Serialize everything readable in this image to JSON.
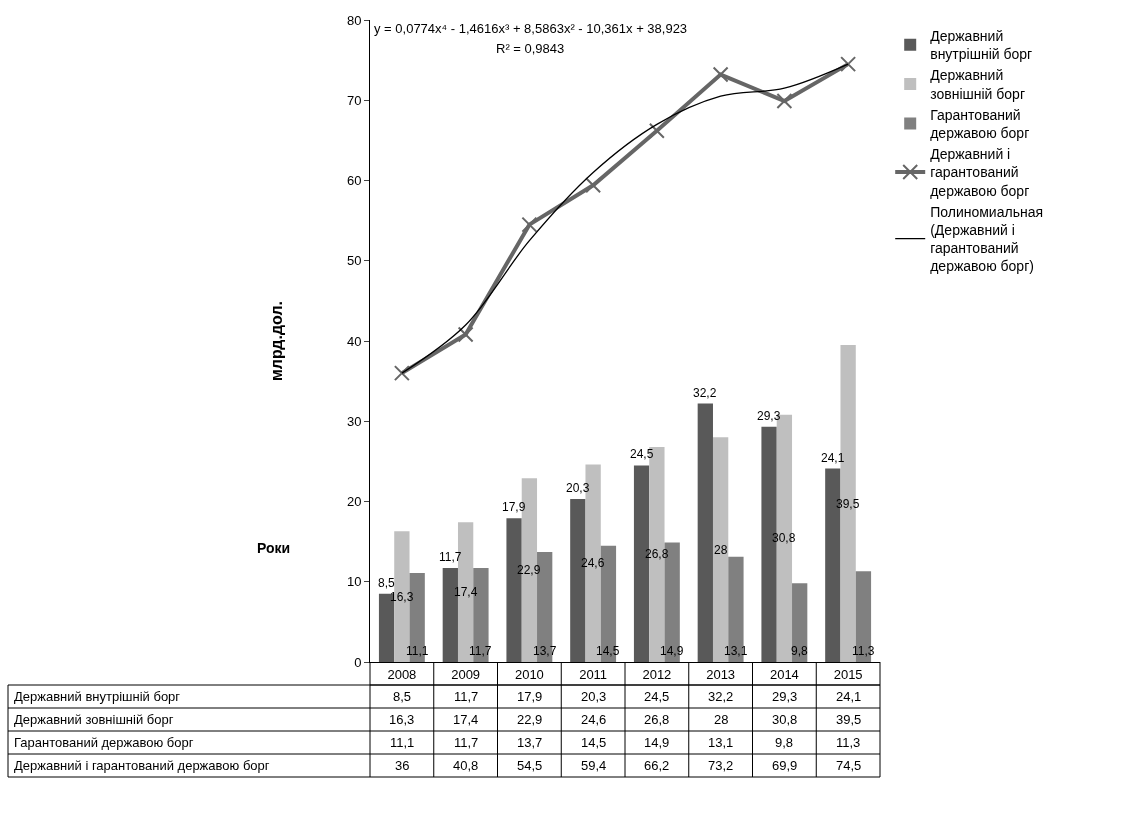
{
  "chart_data": {
    "type": "bar",
    "ylabel": "млрд.дол.",
    "xlabel": "Роки",
    "annotations": [
      "y = 0,0774x⁴ - 1,4616x³ + 8,5863x² - 10,361x + 38,923",
      "R² = 0,9843"
    ],
    "categories": [
      "2008",
      "2009",
      "2010",
      "2011",
      "2012",
      "2013",
      "2014",
      "2015"
    ],
    "series": [
      {
        "name": "Державний внутрішній борг",
        "color": "#595959",
        "values": [
          8.5,
          11.7,
          17.9,
          20.3,
          24.5,
          32.2,
          29.3,
          24.1
        ],
        "value_labels": [
          "8,5",
          "11,7",
          "17,9",
          "20,3",
          "24,5",
          "32,2",
          "29,3",
          "24,1"
        ]
      },
      {
        "name": "Державний зовнішній борг",
        "color": "#bfbfbf",
        "values": [
          16.3,
          17.4,
          22.9,
          24.6,
          26.8,
          28,
          30.8,
          39.5
        ],
        "value_labels": [
          "16,3",
          "17,4",
          "22,9",
          "24,6",
          "26,8",
          "28",
          "30,8",
          "39,5"
        ]
      },
      {
        "name": "Гарантований державою борг",
        "color": "#808080",
        "values": [
          11.1,
          11.7,
          13.7,
          14.5,
          14.9,
          13.1,
          9.8,
          11.3
        ],
        "value_labels": [
          "11,1",
          "11,7",
          "13,7",
          "14,5",
          "14,9",
          "13,1",
          "9,8",
          "11,3"
        ]
      },
      {
        "name": "Державний і гарантований державою борг",
        "type": "line",
        "color": "#666666",
        "marker": "cross",
        "line_style": "solid",
        "values": [
          36,
          40.8,
          54.5,
          59.4,
          66.2,
          73.2,
          69.9,
          74.5
        ],
        "value_labels": [
          "36",
          "40,8",
          "54,5",
          "59,4",
          "66,2",
          "73,2",
          "69,9",
          "74,5"
        ]
      },
      {
        "name": "Полиномиальная (Державний і гарантований державою борг)",
        "type": "line",
        "color": "#000000",
        "marker": "none",
        "line_style": "solid",
        "values": [
          36,
          42,
          52.5,
          61,
          67,
          70.5,
          71.5,
          74.5
        ]
      }
    ],
    "ylim": [
      0,
      80
    ],
    "yticks": [
      0,
      10,
      20,
      30,
      40,
      50,
      60,
      70,
      80
    ],
    "legend": "right"
  }
}
